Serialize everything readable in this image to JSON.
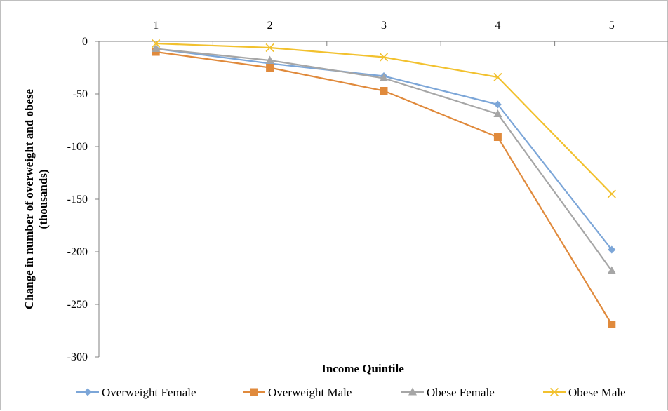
{
  "chart_data": {
    "type": "line",
    "title": "",
    "xlabel": "Income Quintile",
    "ylabel": "Change in number of overweight and obese (thousands)",
    "ylabel_lines": [
      "Change in number of overweight and obese",
      "(thousands)"
    ],
    "categories": [
      "1",
      "2",
      "3",
      "4",
      "5"
    ],
    "ylim": [
      -300,
      0
    ],
    "yticks": [
      0,
      -50,
      -100,
      -150,
      -200,
      -250,
      -300
    ],
    "ytick_labels": [
      "0",
      "-50",
      "-100",
      "-150",
      "-200",
      "-250",
      "-300"
    ],
    "x_axis_position": "top",
    "grid": false,
    "legend_position": "bottom",
    "series": [
      {
        "name": "Overweight Female",
        "color": "#7ca6d8",
        "marker": "diamond",
        "values": [
          -7,
          -21,
          -33,
          -60,
          -198
        ]
      },
      {
        "name": "Overweight Male",
        "color": "#e08a3c",
        "marker": "square",
        "values": [
          -10,
          -25,
          -47,
          -91,
          -269
        ]
      },
      {
        "name": "Obese Female",
        "color": "#a6a6a6",
        "marker": "triangle",
        "values": [
          -7,
          -18,
          -35,
          -69,
          -218
        ]
      },
      {
        "name": "Obese Male",
        "color": "#f2c12e",
        "marker": "x",
        "values": [
          -2,
          -6,
          -15,
          -34,
          -145
        ]
      }
    ]
  }
}
